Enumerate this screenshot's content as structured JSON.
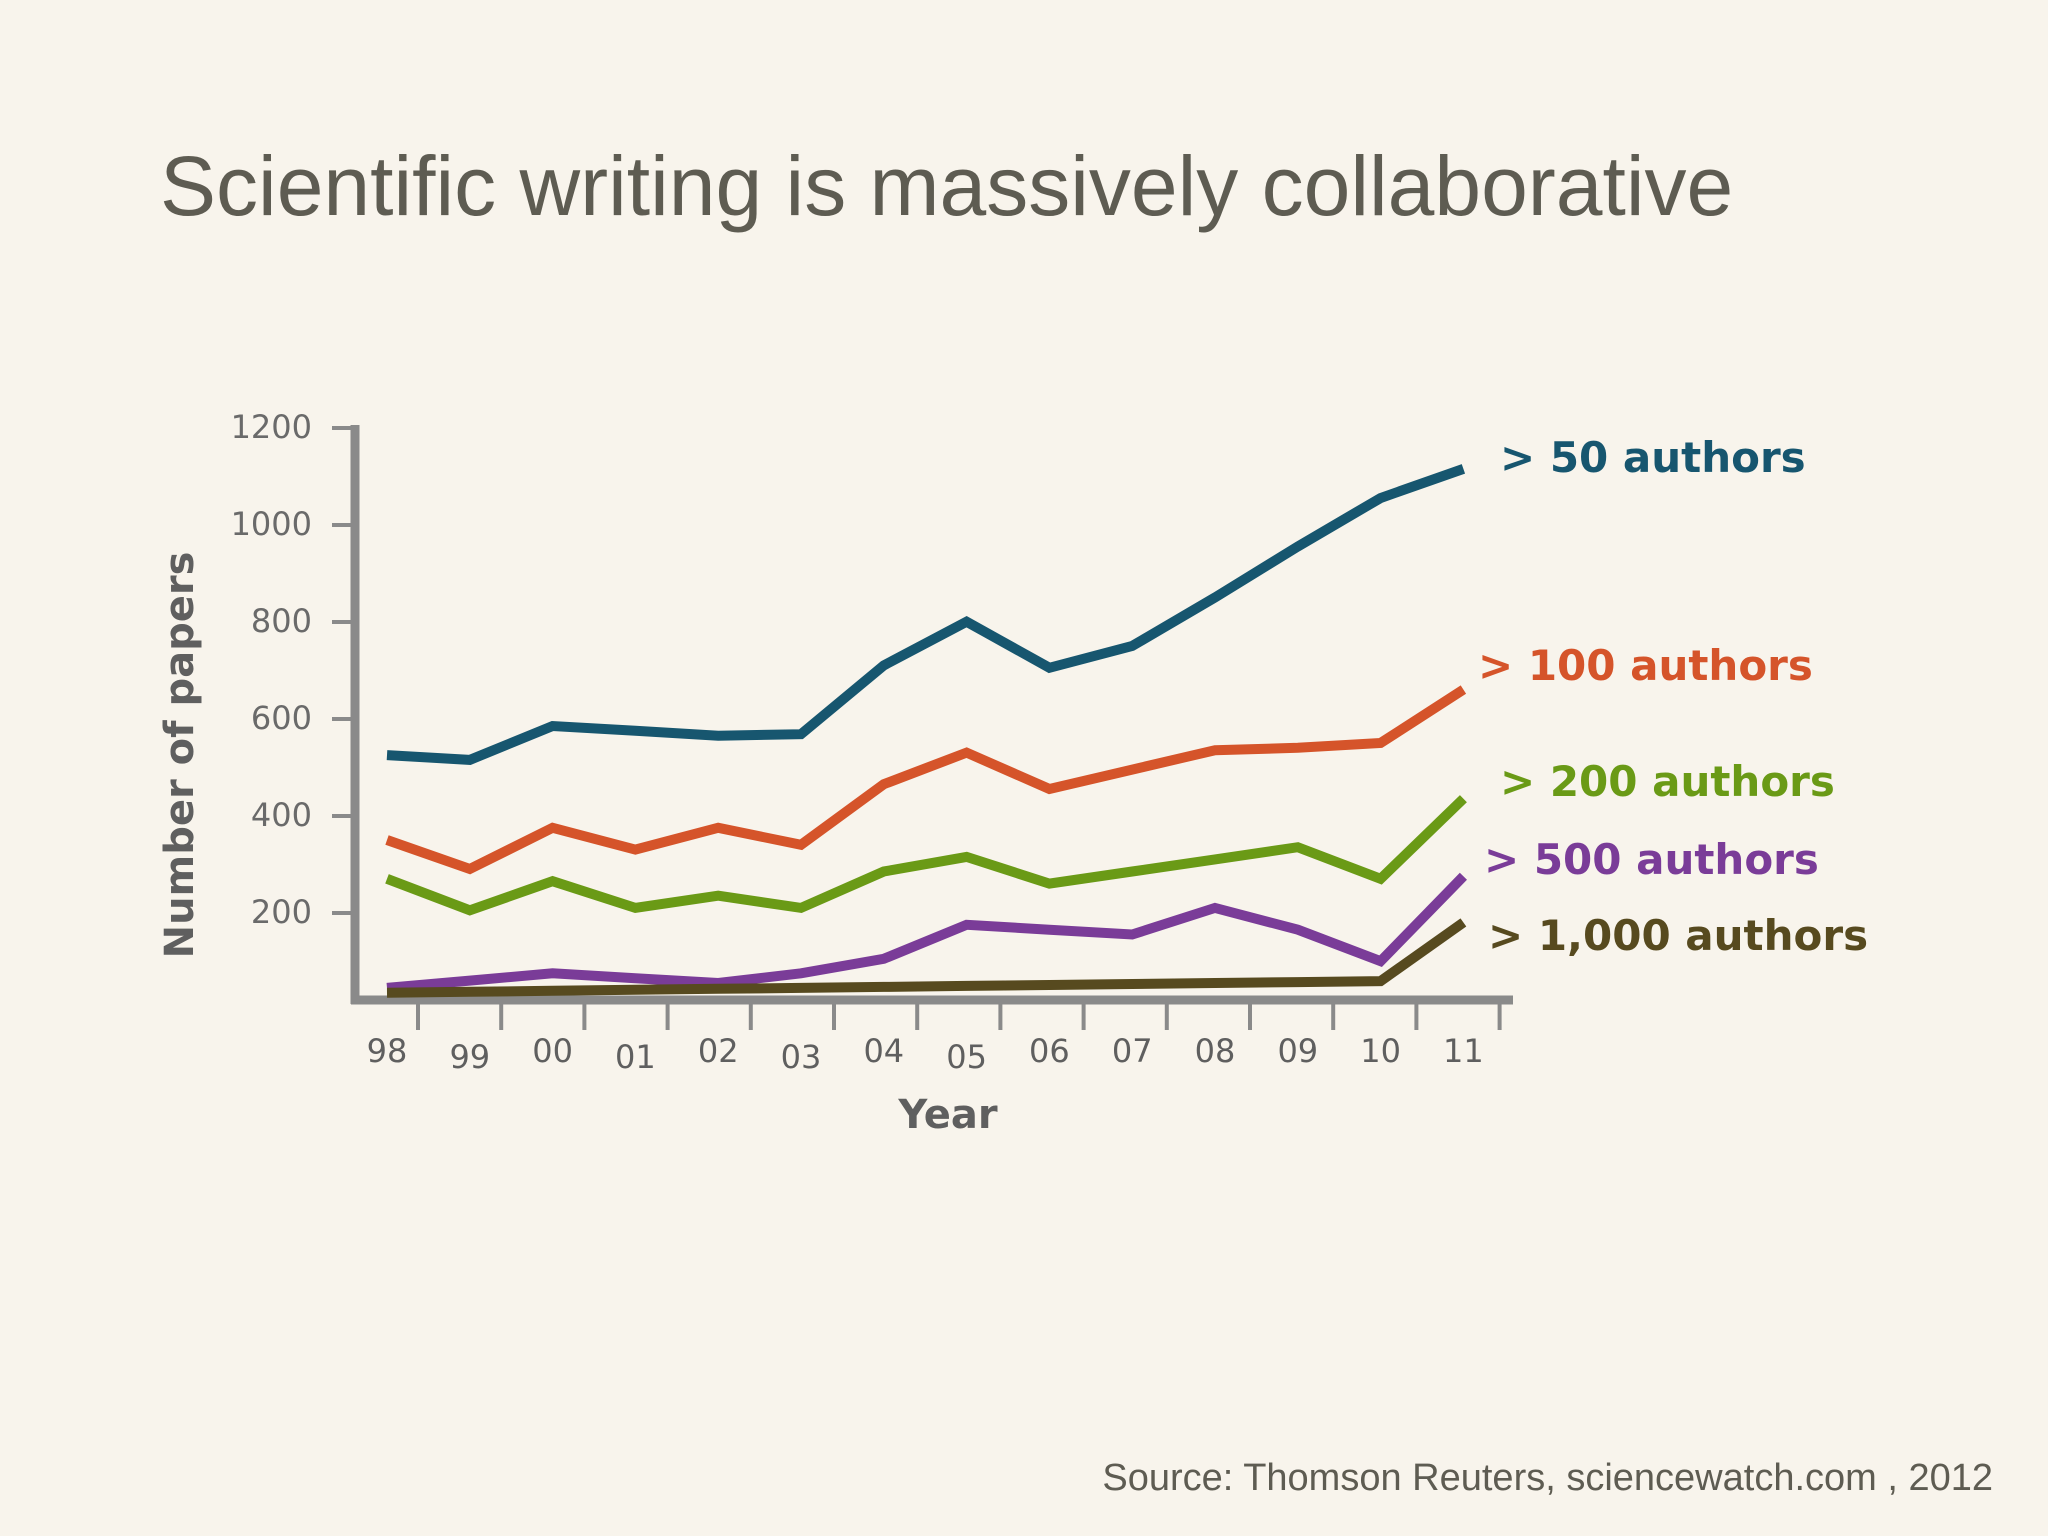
{
  "slide": {
    "title": "Scientific writing is massively collaborative",
    "source": "Source: Thomson Reuters, sciencewatch.com , 2012"
  },
  "chart_data": {
    "type": "line",
    "xlabel": "Year",
    "ylabel": "Number of  papers",
    "ylim": [
      0,
      1200
    ],
    "yticks": [
      200,
      400,
      600,
      800,
      1000,
      1200
    ],
    "grid": false,
    "legend_placement": "right (labels at line ends)",
    "categories": [
      "98",
      "99",
      "00",
      "01",
      "02",
      "03",
      "04",
      "05",
      "06",
      "07",
      "08",
      "09",
      "10",
      "11"
    ],
    "series": [
      {
        "name": "> 50 authors",
        "color": "#17566f",
        "values": [
          505,
          495,
          565,
          555,
          545,
          548,
          690,
          780,
          685,
          730,
          830,
          935,
          1035,
          1095
        ]
      },
      {
        "name": "> 100 authors",
        "color": "#d5542a",
        "values": [
          330,
          270,
          355,
          310,
          355,
          320,
          445,
          510,
          435,
          475,
          515,
          520,
          530,
          640
        ]
      },
      {
        "name": "> 200 authors",
        "color": "#6a9a16",
        "values": [
          250,
          185,
          245,
          190,
          215,
          190,
          265,
          295,
          240,
          265,
          290,
          315,
          250,
          415
        ]
      },
      {
        "name": "> 500 authors",
        "color": "#7a3c98",
        "values": [
          25,
          40,
          55,
          45,
          35,
          55,
          85,
          155,
          145,
          135,
          190,
          145,
          80,
          255
        ]
      },
      {
        "name": "> 1,000 authors",
        "color": "#574a1f",
        "values": [
          15,
          17,
          19,
          21,
          23,
          25,
          27,
          29,
          31,
          33,
          35,
          37,
          39,
          160
        ]
      }
    ]
  }
}
